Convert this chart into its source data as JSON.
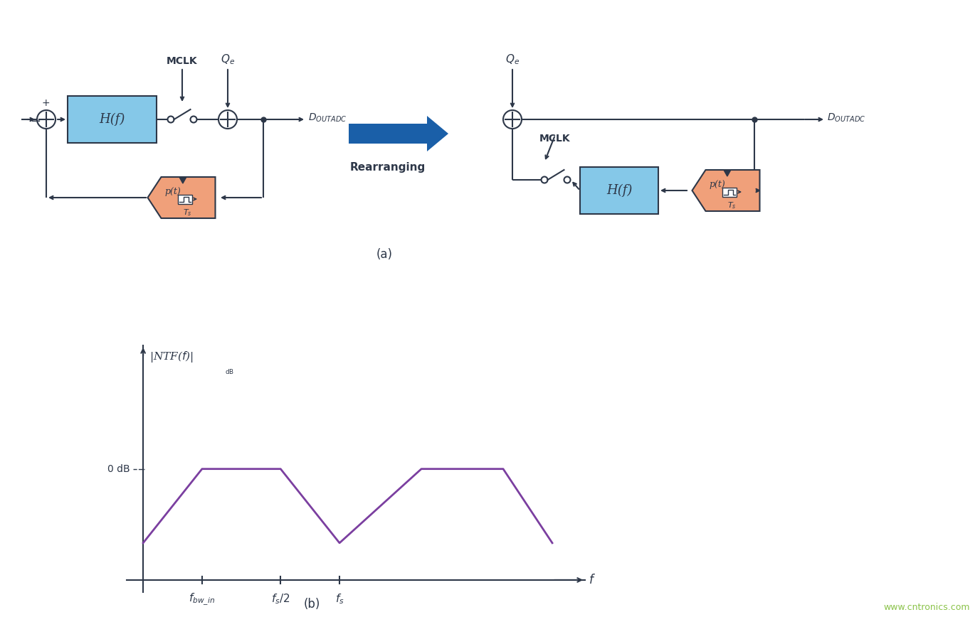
{
  "bg_color": "#ffffff",
  "line_color": "#2d3748",
  "block_blue_color": "#85c8e8",
  "block_orange_color": "#f0a07a",
  "arrow_blue_color": "#1a5fa8",
  "plot_line_color": "#7b3fa0",
  "watermark": "www.cntronics.com",
  "watermark_color": "#8bc34a",
  "label_a": "(a)",
  "label_b": "(b)",
  "rearranging": "Rearranging"
}
